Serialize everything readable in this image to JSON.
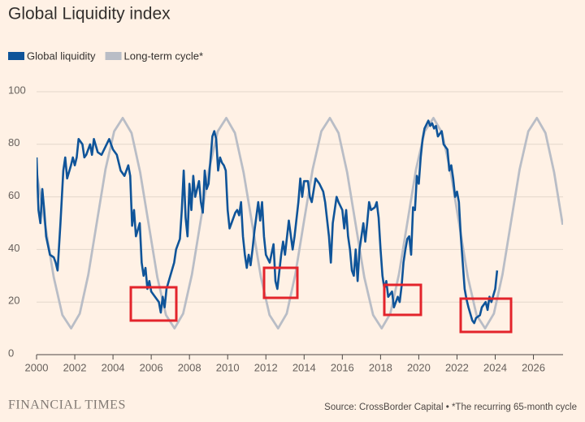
{
  "chart_data": {
    "type": "line",
    "title": "Global Liquidity index",
    "source": "Source: CrossBorder Capital • *The recurring 65-month cycle",
    "brand": "FINANCIAL TIMES",
    "xlim": [
      2000,
      2027.55
    ],
    "xticks": [
      2000,
      2002,
      2004,
      2006,
      2008,
      2010,
      2012,
      2014,
      2016,
      2018,
      2020,
      2022,
      2024,
      2026
    ],
    "ylim": [
      0,
      100
    ],
    "yticks": [
      0,
      20,
      40,
      60,
      80,
      100
    ],
    "grid": true,
    "series": [
      {
        "name": "Global liquidity",
        "color": "#0f5499",
        "x": [
          2000.0,
          2000.1,
          2000.2,
          2000.3,
          2000.4,
          2000.5,
          2000.7,
          2000.9,
          2001.0,
          2001.1,
          2001.25,
          2001.4,
          2001.5,
          2001.6,
          2001.8,
          2001.9,
          2002.0,
          2002.1,
          2002.2,
          2002.4,
          2002.5,
          2002.6,
          2002.8,
          2002.9,
          2003.0,
          2003.2,
          2003.4,
          2003.6,
          2003.8,
          2004.0,
          2004.2,
          2004.4,
          2004.6,
          2004.8,
          2004.9,
          2005.0,
          2005.1,
          2005.2,
          2005.4,
          2005.5,
          2005.6,
          2005.7,
          2005.8,
          2005.9,
          2006.0,
          2006.2,
          2006.4,
          2006.5,
          2006.6,
          2006.7,
          2006.8,
          2007.0,
          2007.2,
          2007.3,
          2007.5,
          2007.6,
          2007.7,
          2007.8,
          2007.9,
          2008.0,
          2008.1,
          2008.2,
          2008.3,
          2008.5,
          2008.6,
          2008.7,
          2008.8,
          2008.9,
          2009.0,
          2009.2,
          2009.3,
          2009.4,
          2009.5,
          2009.6,
          2009.7,
          2009.8,
          2009.9,
          2010.0,
          2010.1,
          2010.2,
          2010.4,
          2010.5,
          2010.6,
          2010.7,
          2010.8,
          2010.9,
          2011.0,
          2011.1,
          2011.2,
          2011.3,
          2011.4,
          2011.6,
          2011.7,
          2011.8,
          2011.9,
          2012.0,
          2012.2,
          2012.4,
          2012.5,
          2012.6,
          2012.8,
          2012.9,
          2013.0,
          2013.2,
          2013.4,
          2013.5,
          2013.7,
          2013.8,
          2013.9,
          2014.0,
          2014.2,
          2014.3,
          2014.4,
          2014.6,
          2014.8,
          2015.0,
          2015.1,
          2015.3,
          2015.4,
          2015.5,
          2015.6,
          2015.7,
          2015.8,
          2016.0,
          2016.1,
          2016.2,
          2016.3,
          2016.4,
          2016.5,
          2016.6,
          2016.7,
          2016.8,
          2016.9,
          2017.0,
          2017.1,
          2017.2,
          2017.3,
          2017.4,
          2017.5,
          2017.7,
          2017.8,
          2017.9,
          2018.0,
          2018.1,
          2018.2,
          2018.3,
          2018.4,
          2018.6,
          2018.7,
          2018.9,
          2019.0,
          2019.1,
          2019.2,
          2019.3,
          2019.4,
          2019.5,
          2019.6,
          2019.7,
          2019.8,
          2019.9,
          2020.0,
          2020.1,
          2020.2,
          2020.3,
          2020.5,
          2020.6,
          2020.7,
          2020.8,
          2020.9,
          2021.0,
          2021.2,
          2021.3,
          2021.5,
          2021.6,
          2021.7,
          2021.8,
          2021.9,
          2022.0,
          2022.1,
          2022.2,
          2022.3,
          2022.4,
          2022.5,
          2022.6,
          2022.8,
          2022.9,
          2023.0,
          2023.2,
          2023.3,
          2023.5,
          2023.6,
          2023.7,
          2023.8,
          2024.0,
          2024.1
        ],
        "values": [
          75,
          55,
          50,
          63,
          55,
          45,
          38,
          37,
          35,
          32,
          50,
          70,
          75,
          67,
          72,
          75,
          72,
          75,
          82,
          80,
          75,
          76,
          80,
          76,
          82,
          77,
          76,
          79,
          82,
          78,
          76,
          70,
          68,
          72,
          68,
          49,
          55,
          45,
          50,
          35,
          30,
          33,
          25,
          28,
          24,
          22,
          20,
          16,
          22,
          18,
          25,
          30,
          35,
          40,
          44,
          55,
          70,
          52,
          45,
          65,
          55,
          68,
          60,
          66,
          58,
          54,
          70,
          63,
          65,
          83,
          85,
          82,
          70,
          75,
          73,
          72,
          70,
          55,
          48,
          50,
          54,
          55,
          53,
          58,
          45,
          38,
          33,
          38,
          34,
          40,
          47,
          58,
          51,
          58,
          45,
          38,
          35,
          42,
          28,
          25,
          38,
          43,
          38,
          51,
          40,
          45,
          58,
          67,
          60,
          66,
          66,
          60,
          58,
          67,
          65,
          62,
          58,
          45,
          35,
          50,
          55,
          60,
          58,
          55,
          48,
          55,
          45,
          40,
          32,
          30,
          40,
          28,
          40,
          45,
          50,
          43,
          50,
          58,
          55,
          56,
          58,
          52,
          40,
          30,
          25,
          28,
          22,
          24,
          18,
          22,
          20,
          26,
          35,
          40,
          44,
          45,
          38,
          56,
          55,
          68,
          65,
          75,
          82,
          86,
          89,
          87,
          88,
          86,
          87,
          83,
          85,
          80,
          78,
          70,
          72,
          67,
          60,
          62,
          58,
          45,
          35,
          25,
          21,
          18,
          13,
          12,
          14,
          15,
          18,
          20,
          17,
          22,
          20,
          25,
          32
        ]
      },
      {
        "name": "Long-term cycle*",
        "color": "#b9bdc6",
        "x": [
          2000.0,
          2000.45,
          2000.9,
          2001.35,
          2001.81,
          2002.26,
          2002.71,
          2003.16,
          2003.61,
          2004.06,
          2004.51,
          2004.97,
          2005.42,
          2005.87,
          2006.32,
          2006.77,
          2007.22,
          2007.67,
          2008.13,
          2008.58,
          2009.03,
          2009.48,
          2009.93,
          2010.38,
          2010.83,
          2011.29,
          2011.74,
          2012.19,
          2012.64,
          2013.09,
          2013.54,
          2013.99,
          2014.45,
          2014.9,
          2015.35,
          2015.8,
          2016.25,
          2016.7,
          2017.15,
          2017.61,
          2018.06,
          2018.51,
          2018.96,
          2019.41,
          2019.86,
          2020.31,
          2020.77,
          2021.22,
          2021.67,
          2022.12,
          2022.57,
          2023.02,
          2023.47,
          2023.93,
          2024.38,
          2024.83,
          2025.28,
          2025.73,
          2026.18,
          2026.63,
          2027.08,
          2027.53
        ],
        "values": [
          69.4,
          49.4,
          29.4,
          15.1,
          10.0,
          15.6,
          30.5,
          50.6,
          70.6,
          84.9,
          90.0,
          84.3,
          69.4,
          49.4,
          29.4,
          15.1,
          10.0,
          15.6,
          30.5,
          50.6,
          70.6,
          84.9,
          90.0,
          84.3,
          69.4,
          49.4,
          29.4,
          15.1,
          10.0,
          15.6,
          30.5,
          50.6,
          70.6,
          84.9,
          90.0,
          84.3,
          69.4,
          49.4,
          29.4,
          15.1,
          10.0,
          15.6,
          30.5,
          50.6,
          70.6,
          84.9,
          90.0,
          84.3,
          69.4,
          49.4,
          29.4,
          15.1,
          10.0,
          15.6,
          30.5,
          50.6,
          70.6,
          84.9,
          90.0,
          84.3,
          69.4,
          49.4
        ]
      }
    ]
  }
}
